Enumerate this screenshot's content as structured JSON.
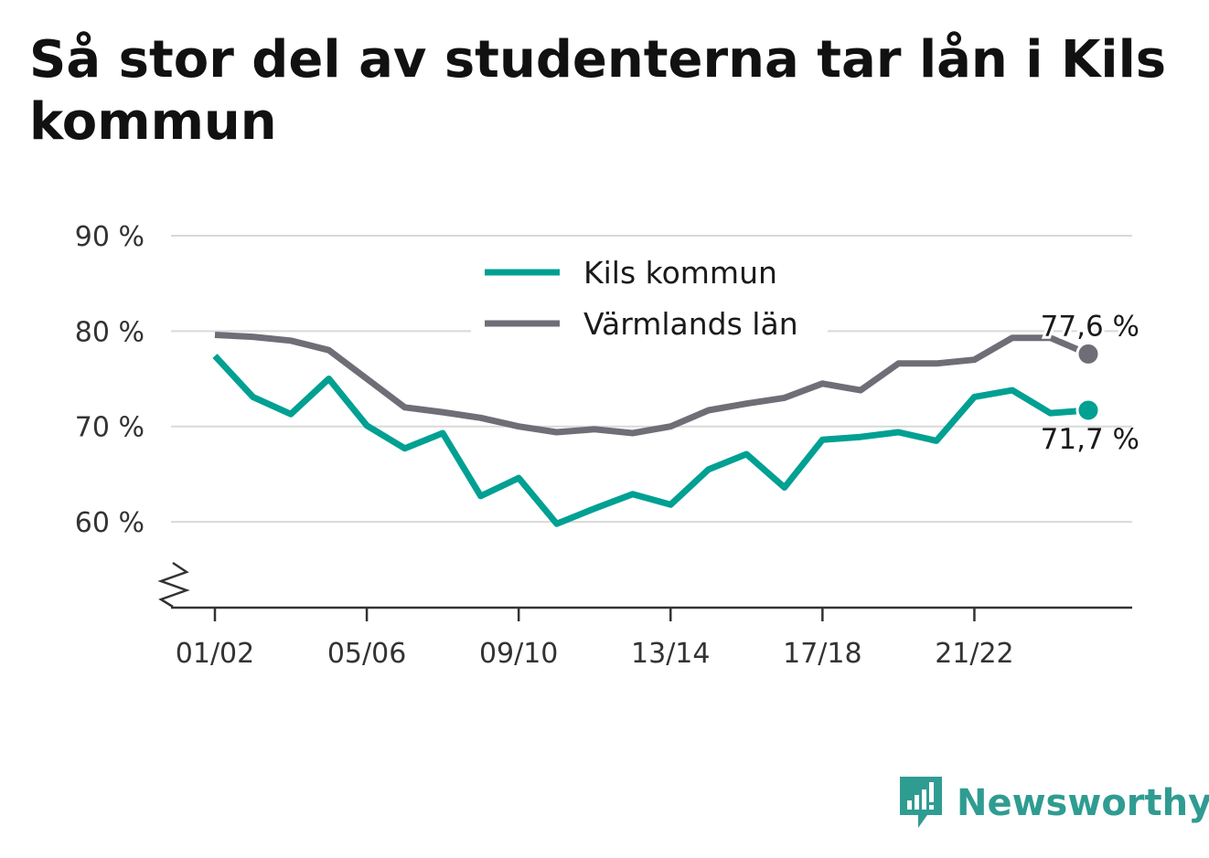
{
  "title": "Så stor del av studenterna tar lån i Kils kommun",
  "brand": {
    "name": "Newsworthy",
    "icon": "newsworthy-logo-icon",
    "color": "#2f9c92"
  },
  "chart_data": {
    "type": "line",
    "title": "Så stor del av studenterna tar lån i Kils kommun",
    "xlabel": "",
    "ylabel": "",
    "x": [
      "01/02",
      "02/03",
      "03/04",
      "04/05",
      "05/06",
      "06/07",
      "07/08",
      "08/09",
      "09/10",
      "10/11",
      "11/12",
      "12/13",
      "13/14",
      "14/15",
      "15/16",
      "16/17",
      "17/18",
      "18/19",
      "19/20",
      "20/21",
      "21/22",
      "22/23",
      "23/24",
      "24/25"
    ],
    "x_tick_labels": [
      "01/02",
      "05/06",
      "09/10",
      "13/14",
      "17/18",
      "21/22"
    ],
    "y_tick_labels": [
      "60 %",
      "70 %",
      "80 %",
      "90 %"
    ],
    "y_ticks": [
      60,
      70,
      80,
      90
    ],
    "ylim": [
      51,
      90
    ],
    "grid": true,
    "legend_position": "top-center",
    "series": [
      {
        "name": "Kils kommun",
        "color": "#00a092",
        "values": [
          77.4,
          73.1,
          71.3,
          75.0,
          70.1,
          67.7,
          69.3,
          62.7,
          64.6,
          59.8,
          61.4,
          62.9,
          61.8,
          65.5,
          67.1,
          63.6,
          68.6,
          68.9,
          69.4,
          68.5,
          73.1,
          73.8,
          71.4,
          71.7
        ],
        "end_label": "71,7 %"
      },
      {
        "name": "Värmlands län",
        "color": "#6f6e77",
        "values": [
          79.6,
          79.4,
          79.0,
          78.0,
          75.0,
          72.0,
          71.5,
          70.9,
          70.0,
          69.4,
          69.7,
          69.3,
          70.0,
          71.7,
          72.4,
          73.0,
          74.5,
          73.8,
          76.6,
          76.6,
          77.0,
          79.3,
          79.3,
          77.6
        ],
        "end_label": "77,6 %"
      }
    ]
  }
}
